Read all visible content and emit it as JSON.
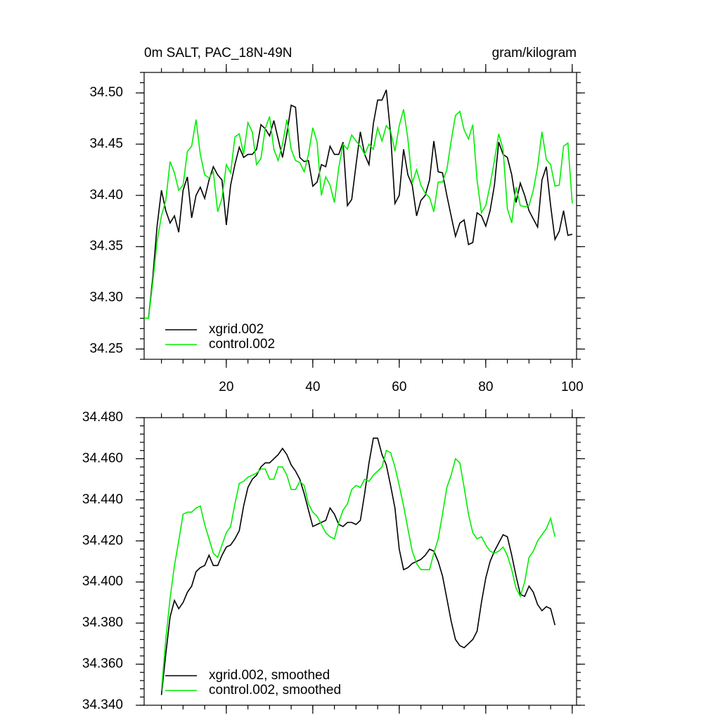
{
  "chart_data": [
    {
      "type": "line",
      "title": "0m SALT, PAC_18N-49N",
      "units": "gram/kilogram",
      "x": [
        1,
        2,
        3,
        4,
        5,
        6,
        7,
        8,
        9,
        10,
        11,
        12,
        13,
        14,
        15,
        16,
        17,
        18,
        19,
        20,
        21,
        22,
        23,
        24,
        25,
        26,
        27,
        28,
        29,
        30,
        31,
        32,
        33,
        34,
        35,
        36,
        37,
        38,
        39,
        40,
        41,
        42,
        43,
        44,
        45,
        46,
        47,
        48,
        49,
        50,
        51,
        52,
        53,
        54,
        55,
        56,
        57,
        58,
        59,
        60,
        61,
        62,
        63,
        64,
        65,
        66,
        67,
        68,
        69,
        70,
        71,
        72,
        73,
        74,
        75,
        76,
        77,
        78,
        79,
        80,
        81,
        82,
        83,
        84,
        85,
        86,
        87,
        88,
        89,
        90,
        91,
        92,
        93,
        94,
        95,
        96,
        97,
        98,
        99,
        100
      ],
      "series": [
        {
          "name": "xgrid.002",
          "color": "#000000",
          "values": [
            34.28,
            34.28,
            34.32,
            34.37,
            34.405,
            34.385,
            34.373,
            34.38,
            34.364,
            34.405,
            34.418,
            34.378,
            34.4,
            34.408,
            34.397,
            34.415,
            34.428,
            34.42,
            34.415,
            34.371,
            34.41,
            34.43,
            34.447,
            34.437,
            34.44,
            34.44,
            34.445,
            34.469,
            34.465,
            34.458,
            34.473,
            34.455,
            34.437,
            34.46,
            34.488,
            34.486,
            34.437,
            34.433,
            34.434,
            34.409,
            34.413,
            34.43,
            34.428,
            34.448,
            34.44,
            34.44,
            34.452,
            34.39,
            34.396,
            34.43,
            34.462,
            34.44,
            34.43,
            34.47,
            34.493,
            34.493,
            34.503,
            34.46,
            34.392,
            34.4,
            34.445,
            34.42,
            34.41,
            34.38,
            34.395,
            34.4,
            34.415,
            34.453,
            34.423,
            34.422,
            34.4,
            34.38,
            34.36,
            34.373,
            34.376,
            34.352,
            34.354,
            34.383,
            34.38,
            34.37,
            34.385,
            34.41,
            34.452,
            34.44,
            34.437,
            34.42,
            34.393,
            34.412,
            34.4,
            34.385,
            34.377,
            34.369,
            34.415,
            34.428,
            34.39,
            34.357,
            34.365,
            34.385,
            34.361,
            34.362
          ]
        },
        {
          "name": "control.002",
          "color": "#00ee00",
          "values": [
            34.28,
            34.28,
            34.315,
            34.355,
            34.38,
            34.395,
            34.433,
            34.422,
            34.405,
            34.41,
            34.443,
            34.448,
            34.474,
            34.44,
            34.42,
            34.417,
            34.423,
            34.384,
            34.397,
            34.43,
            34.422,
            34.457,
            34.46,
            34.44,
            34.471,
            34.462,
            34.43,
            34.436,
            34.465,
            34.477,
            34.445,
            34.434,
            34.45,
            34.474,
            34.445,
            34.434,
            34.432,
            34.423,
            34.44,
            34.466,
            34.452,
            34.4,
            34.418,
            34.41,
            34.393,
            34.427,
            34.45,
            34.445,
            34.459,
            34.453,
            34.448,
            34.44,
            34.45,
            34.445,
            34.466,
            34.453,
            34.468,
            34.463,
            34.443,
            34.468,
            34.484,
            34.455,
            34.412,
            34.425,
            34.41,
            34.402,
            34.398,
            34.384,
            34.413,
            34.413,
            34.425,
            34.453,
            34.478,
            34.482,
            34.464,
            34.455,
            34.469,
            34.415,
            34.383,
            34.39,
            34.41,
            34.434,
            34.46,
            34.445,
            34.387,
            34.373,
            34.408,
            34.39,
            34.389,
            34.39,
            34.405,
            34.428,
            34.462,
            34.435,
            34.43,
            34.409,
            34.41,
            34.448,
            34.451,
            34.392
          ]
        }
      ],
      "xlim": [
        1,
        101
      ],
      "xticks": [
        20,
        40,
        60,
        80,
        100
      ],
      "ylim": [
        34.24,
        34.52
      ],
      "yticks": [
        {
          "value": 34.25,
          "label": "34.25"
        },
        {
          "value": 34.3,
          "label": "34.30"
        },
        {
          "value": 34.35,
          "label": "34.35"
        },
        {
          "value": 34.4,
          "label": "34.40"
        },
        {
          "value": 34.45,
          "label": "34.45"
        },
        {
          "value": 34.5,
          "label": "34.50"
        }
      ],
      "legend": "lower left"
    },
    {
      "type": "line",
      "x": [
        5,
        6,
        7,
        8,
        9,
        10,
        11,
        12,
        13,
        14,
        15,
        16,
        17,
        18,
        19,
        20,
        21,
        22,
        23,
        24,
        25,
        26,
        27,
        28,
        29,
        30,
        31,
        32,
        33,
        34,
        35,
        36,
        37,
        38,
        39,
        40,
        41,
        42,
        43,
        44,
        45,
        46,
        47,
        48,
        49,
        50,
        51,
        52,
        53,
        54,
        55,
        56,
        57,
        58,
        59,
        60,
        61,
        62,
        63,
        64,
        65,
        66,
        67,
        68,
        69,
        70,
        71,
        72,
        73,
        74,
        75,
        76,
        77,
        78,
        79,
        80,
        81,
        82,
        83,
        84,
        85,
        86,
        87,
        88,
        89,
        90,
        91,
        92,
        93,
        94,
        95,
        96
      ],
      "series": [
        {
          "name": "xgrid.002, smoothed",
          "color": "#000000",
          "values": [
            34.345,
            34.365,
            34.383,
            34.391,
            34.387,
            34.39,
            34.395,
            34.398,
            34.405,
            34.407,
            34.408,
            34.413,
            34.408,
            34.408,
            34.413,
            34.417,
            34.418,
            34.421,
            34.425,
            34.437,
            34.446,
            34.45,
            34.452,
            34.456,
            34.458,
            34.458,
            34.46,
            34.462,
            34.465,
            34.462,
            34.457,
            34.454,
            34.45,
            34.443,
            34.435,
            34.427,
            34.428,
            34.429,
            34.43,
            34.436,
            34.433,
            34.428,
            34.427,
            34.429,
            34.429,
            34.428,
            34.43,
            34.443,
            34.458,
            34.47,
            34.47,
            34.462,
            34.457,
            34.447,
            34.436,
            34.416,
            34.406,
            34.407,
            34.409,
            34.41,
            34.411,
            34.413,
            34.416,
            34.415,
            34.41,
            34.403,
            34.392,
            34.381,
            34.372,
            34.369,
            34.368,
            34.37,
            34.372,
            34.376,
            34.39,
            34.402,
            34.41,
            34.415,
            34.419,
            34.423,
            34.422,
            34.413,
            34.403,
            34.394,
            34.393,
            34.398,
            34.395,
            34.389,
            34.386,
            34.388,
            34.387,
            34.379
          ]
        },
        {
          "name": "control.002, smoothed",
          "color": "#00ee00",
          "values": [
            34.347,
            34.372,
            34.392,
            34.408,
            34.42,
            34.433,
            34.434,
            34.434,
            34.436,
            34.437,
            34.428,
            34.421,
            34.414,
            34.412,
            34.418,
            34.424,
            34.427,
            34.438,
            34.448,
            34.449,
            34.451,
            34.452,
            34.453,
            34.455,
            34.455,
            34.45,
            34.45,
            34.456,
            34.456,
            34.452,
            34.445,
            34.445,
            34.449,
            34.447,
            34.438,
            34.434,
            34.432,
            34.428,
            34.424,
            34.422,
            34.421,
            34.429,
            34.435,
            34.438,
            34.445,
            34.447,
            34.446,
            34.45,
            34.449,
            34.452,
            34.454,
            34.456,
            34.464,
            34.463,
            34.456,
            34.447,
            34.437,
            34.426,
            34.415,
            34.409,
            34.406,
            34.406,
            34.406,
            34.414,
            34.421,
            34.433,
            34.446,
            34.452,
            34.46,
            34.458,
            34.446,
            34.433,
            34.424,
            34.421,
            34.422,
            34.418,
            34.415,
            34.414,
            34.415,
            34.417,
            34.413,
            34.406,
            34.397,
            34.393,
            34.4,
            34.412,
            34.415,
            34.42,
            34.423,
            34.426,
            34.431,
            34.422
          ]
        }
      ],
      "xlim": [
        1,
        101
      ],
      "xticks": [
        20,
        40,
        60,
        80,
        100
      ],
      "ylim": [
        34.34,
        34.48
      ],
      "yticks": [
        {
          "value": 34.34,
          "label": "34.340"
        },
        {
          "value": 34.36,
          "label": "34.360"
        },
        {
          "value": 34.38,
          "label": "34.380"
        },
        {
          "value": 34.4,
          "label": "34.400"
        },
        {
          "value": 34.42,
          "label": "34.420"
        },
        {
          "value": 34.44,
          "label": "34.440"
        },
        {
          "value": 34.46,
          "label": "34.460"
        },
        {
          "value": 34.48,
          "label": "34.480"
        }
      ],
      "legend": "lower left"
    }
  ]
}
